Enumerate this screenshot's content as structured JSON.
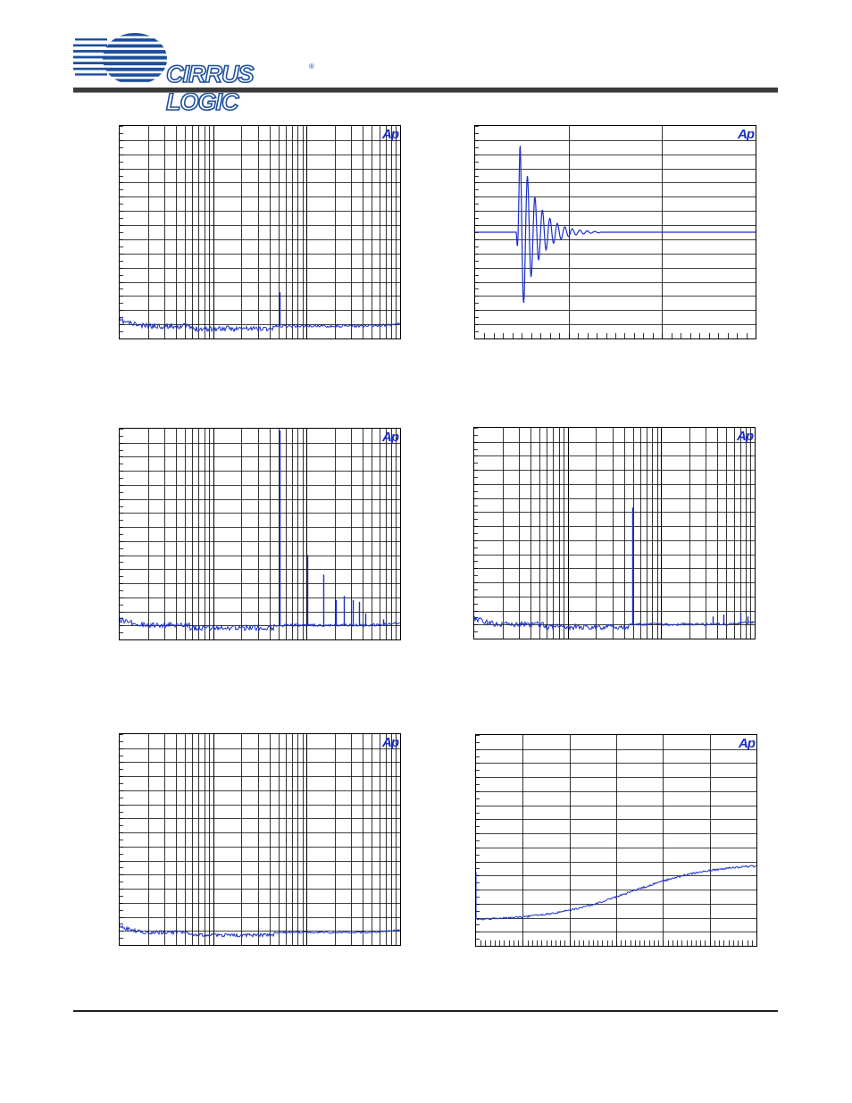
{
  "header": {
    "company_name": "CIRRUS LOGIC",
    "registered_mark": "®",
    "logo_icon": "cirrus-logic-logo-icon"
  },
  "colors": {
    "trace": "#1a2fc8",
    "grid": "#000000",
    "rule": "#3a3a3a"
  },
  "charts": [
    {
      "id": "chart-1",
      "badge": "Ap",
      "chart_data": {
        "type": "line",
        "x_scale": "log",
        "grid": true,
        "title": "",
        "xlabel": "",
        "ylabel": "",
        "series": [
          {
            "shape": "noise-floor",
            "spikes": [
              {
                "x": 0.57,
                "height": 0.17
              }
            ]
          }
        ]
      }
    },
    {
      "id": "chart-2",
      "badge": "Ap",
      "chart_data": {
        "type": "line",
        "x_scale": "linear",
        "grid": true,
        "title": "",
        "xlabel": "",
        "ylabel": "",
        "series": [
          {
            "shape": "impulse-response",
            "center": 0.5
          }
        ]
      }
    },
    {
      "id": "chart-3",
      "badge": "Ap",
      "chart_data": {
        "type": "line",
        "x_scale": "log",
        "grid": true,
        "title": "",
        "xlabel": "",
        "ylabel": "",
        "series": [
          {
            "shape": "fft-harmonics",
            "spikes": [
              {
                "x": 0.57,
                "height": 1.0
              },
              {
                "x": 0.67,
                "height": 0.36
              },
              {
                "x": 0.727,
                "height": 0.26
              },
              {
                "x": 0.77,
                "height": 0.13
              },
              {
                "x": 0.8,
                "height": 0.15
              },
              {
                "x": 0.83,
                "height": 0.13
              },
              {
                "x": 0.855,
                "height": 0.12
              },
              {
                "x": 0.876,
                "height": 0.06
              },
              {
                "x": 0.94,
                "height": 0.03
              }
            ]
          }
        ]
      }
    },
    {
      "id": "chart-4",
      "badge": "Ap",
      "chart_data": {
        "type": "line",
        "x_scale": "log",
        "grid": true,
        "title": "",
        "xlabel": "",
        "ylabel": "",
        "series": [
          {
            "shape": "fft-low-distortion",
            "spikes": [
              {
                "x": 0.565,
                "height": 0.6
              },
              {
                "x": 0.85,
                "height": 0.04
              },
              {
                "x": 0.89,
                "height": 0.05
              },
              {
                "x": 0.95,
                "height": 0.06
              },
              {
                "x": 0.975,
                "height": 0.04
              }
            ]
          }
        ]
      }
    },
    {
      "id": "chart-5",
      "badge": "Ap",
      "chart_data": {
        "type": "line",
        "x_scale": "log",
        "grid": true,
        "title": "",
        "xlabel": "",
        "ylabel": "",
        "series": [
          {
            "shape": "idle-noise"
          }
        ]
      }
    },
    {
      "id": "chart-6",
      "badge": "Ap",
      "chart_data": {
        "type": "line",
        "x_scale": "linear",
        "grid": true,
        "title": "",
        "xlabel": "",
        "ylabel": "",
        "series": [
          {
            "shape": "rising-curve",
            "start": 0.12,
            "end": 0.39
          }
        ]
      }
    }
  ]
}
